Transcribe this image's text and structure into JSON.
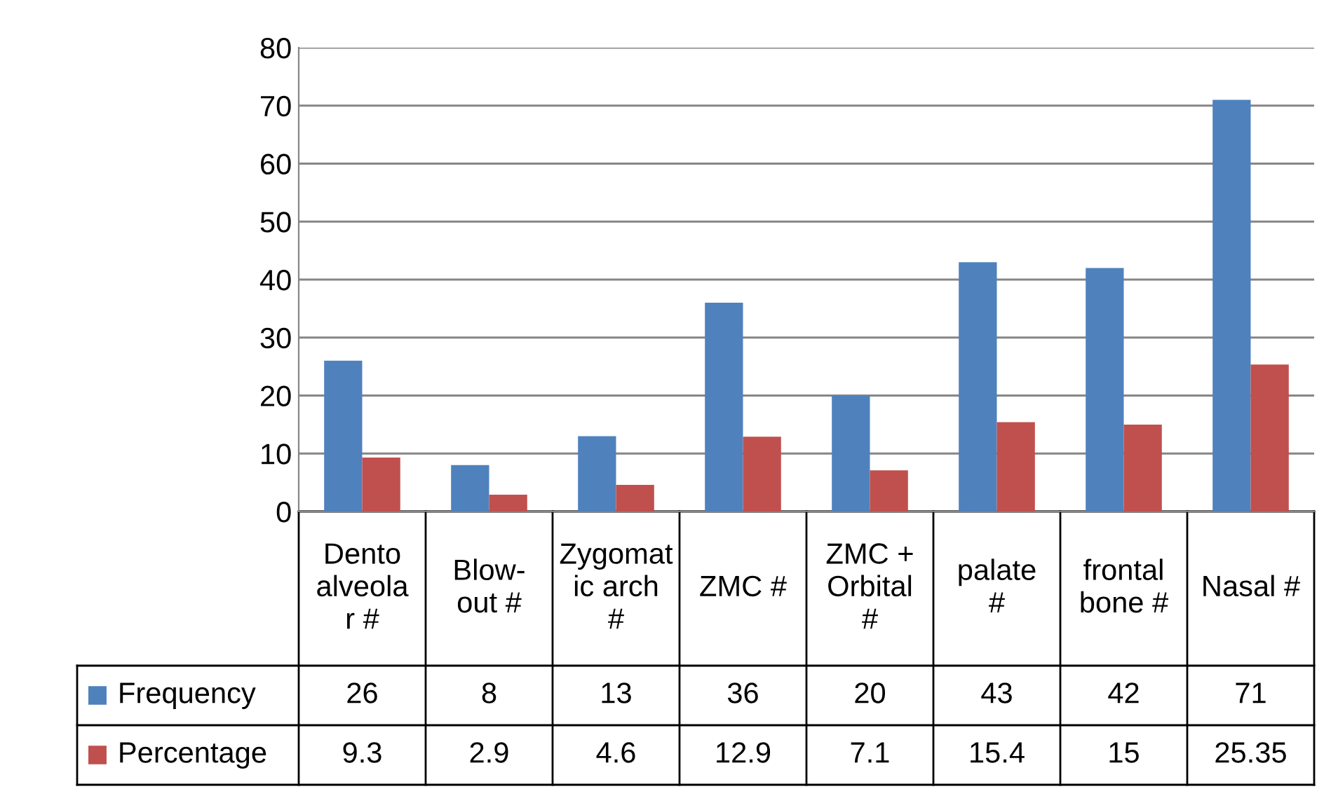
{
  "chart_data": {
    "type": "bar",
    "categories": [
      "Dento alveolar #",
      "Blow-out #",
      "Zygomatic arch #",
      "ZMC #",
      "ZMC + Orbital #",
      "palate #",
      "frontal bone #",
      "Nasal #"
    ],
    "series": [
      {
        "name": "Frequency",
        "color": "#4f81bd",
        "values": [
          26,
          8,
          13,
          36,
          20,
          43,
          42,
          71
        ]
      },
      {
        "name": "Percentage",
        "color": "#c0504d",
        "values": [
          9.3,
          2.9,
          4.6,
          12.9,
          7.1,
          15.4,
          15,
          25.35
        ]
      }
    ],
    "ylim": [
      0,
      80
    ],
    "yticks": [
      0,
      10,
      20,
      30,
      40,
      50,
      60,
      70,
      80
    ],
    "grid": "y",
    "legend": "bottom left",
    "data_labels": true
  }
}
